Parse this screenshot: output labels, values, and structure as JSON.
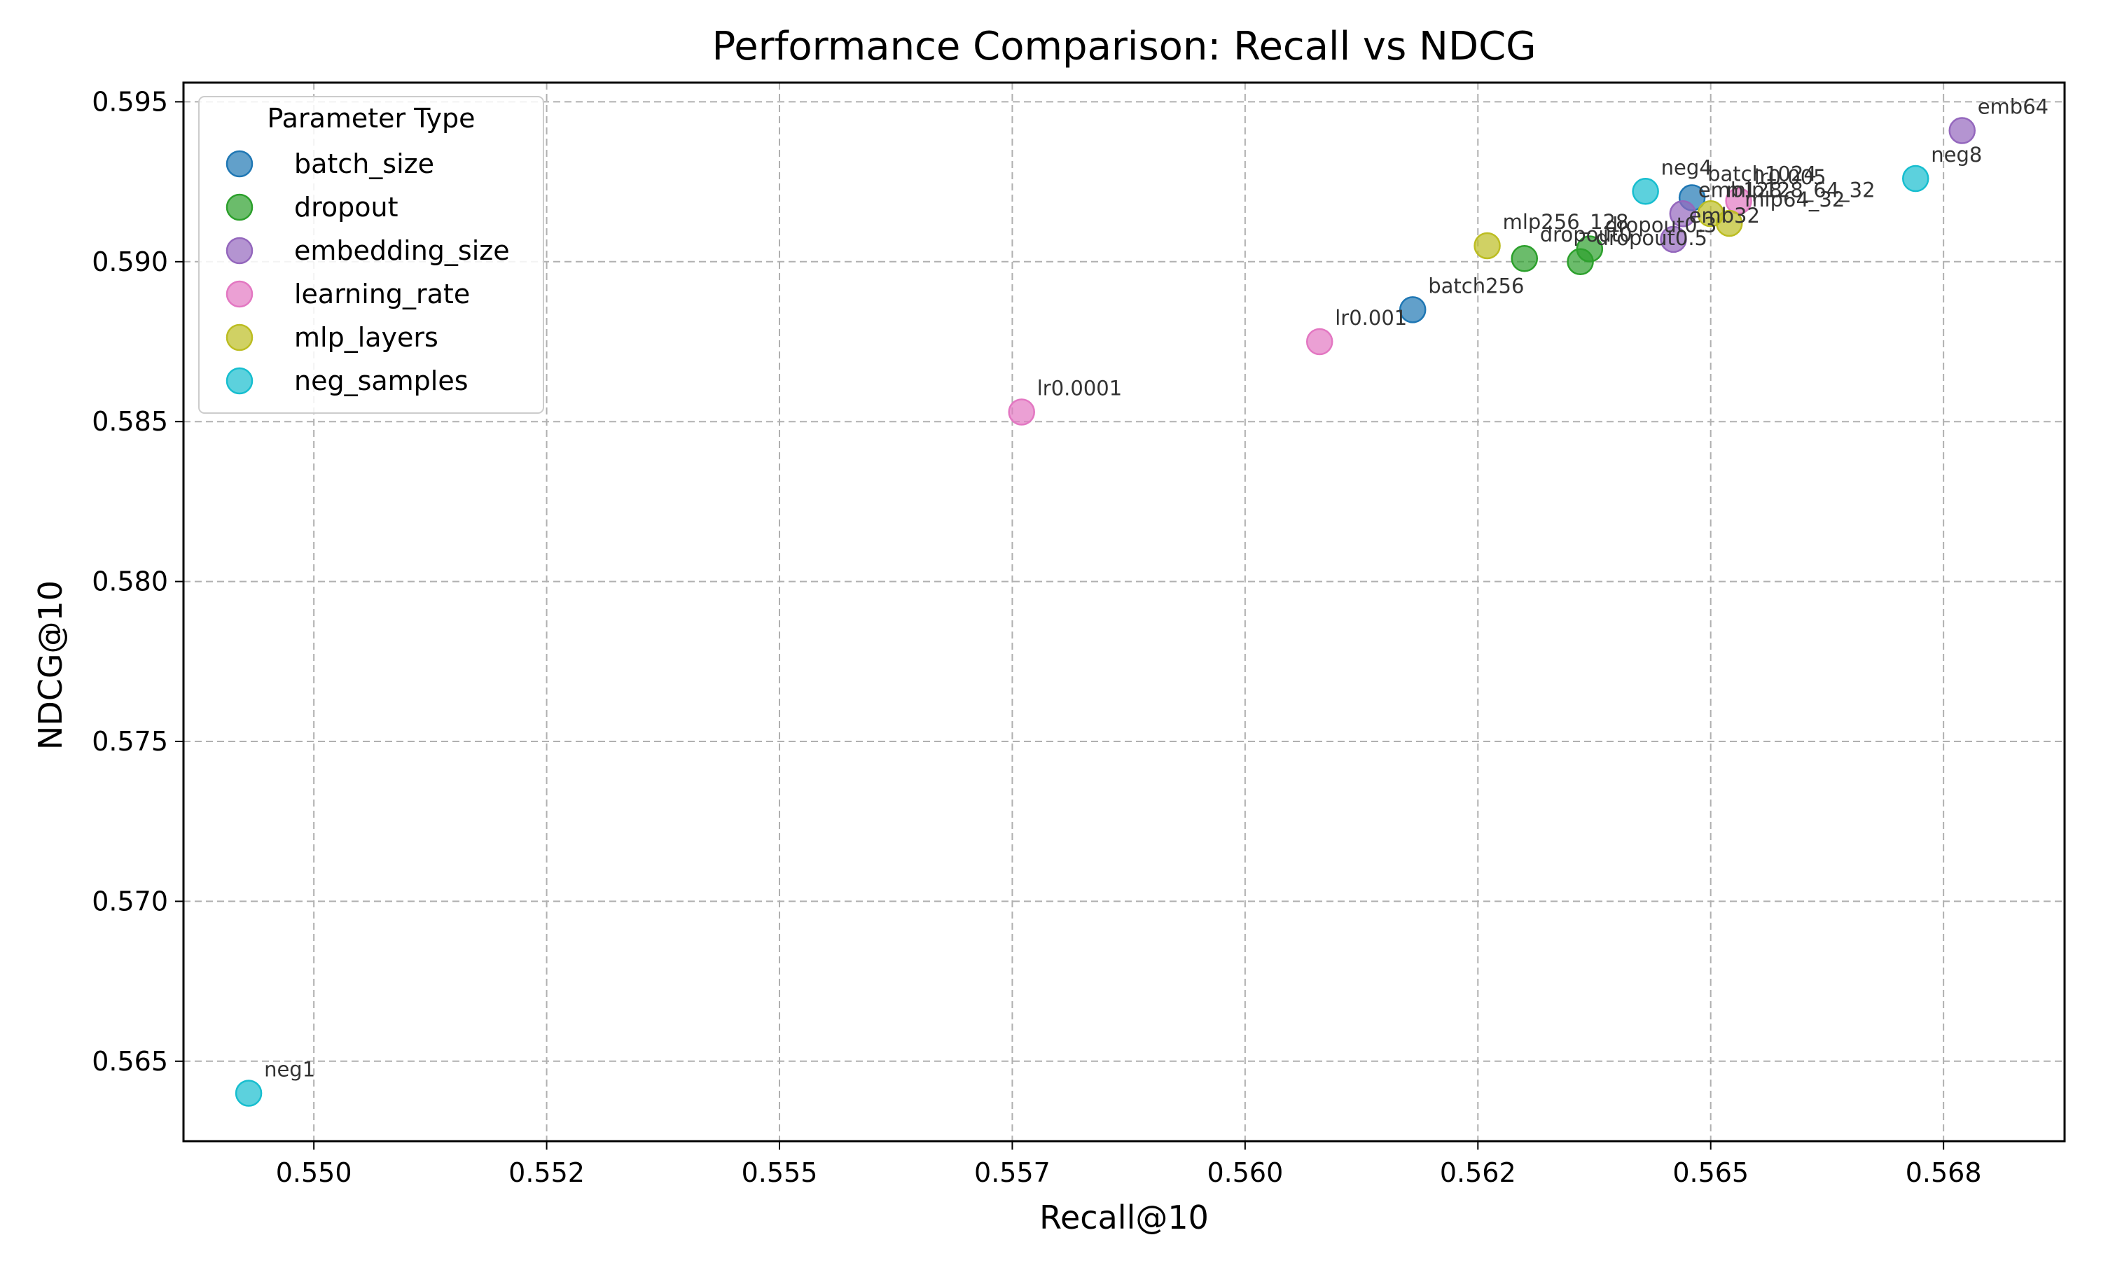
{
  "chart_data": {
    "type": "scatter",
    "title": "Performance Comparison: Recall vs NDCG",
    "xlabel": "Recall@10",
    "ylabel": "NDCG@10",
    "xlim": [
      0.5486,
      0.5688
    ],
    "ylim": [
      0.5625,
      0.5956
    ],
    "x_ticks": [
      "0.550",
      "0.552",
      "0.555",
      "0.557",
      "0.560",
      "0.562",
      "0.565",
      "0.568"
    ],
    "x_tick_values": [
      0.55,
      0.5525,
      0.555,
      0.5575,
      0.56,
      0.5625,
      0.565,
      0.5675
    ],
    "y_ticks": [
      "0.565",
      "0.570",
      "0.575",
      "0.580",
      "0.585",
      "0.590",
      "0.595"
    ],
    "y_tick_values": [
      0.565,
      0.57,
      0.575,
      0.58,
      0.585,
      0.59,
      0.595
    ],
    "grid": true,
    "legend": {
      "title": "Parameter Type",
      "placement": "top-left"
    },
    "series": [
      {
        "name": "batch_size",
        "color": "#1f77b4",
        "points": [
          {
            "label": "batch256",
            "x": 0.5618,
            "y": 0.5885
          },
          {
            "label": "batch1024",
            "x": 0.5648,
            "y": 0.592
          }
        ]
      },
      {
        "name": "dropout",
        "color": "#2ca02c",
        "points": [
          {
            "label": "dropout0",
            "x": 0.563,
            "y": 0.5901
          },
          {
            "label": "dropout0.5",
            "x": 0.5636,
            "y": 0.59
          },
          {
            "label": "dropout0.3",
            "x": 0.5637,
            "y": 0.5904
          }
        ]
      },
      {
        "name": "embedding_size",
        "color": "#9467bd",
        "points": [
          {
            "label": "emb64",
            "x": 0.5677,
            "y": 0.5941
          },
          {
            "label": "emb128",
            "x": 0.5647,
            "y": 0.5915
          },
          {
            "label": "emb32",
            "x": 0.5646,
            "y": 0.5907
          }
        ]
      },
      {
        "name": "learning_rate",
        "color": "#e377c2",
        "points": [
          {
            "label": "lr0.0001",
            "x": 0.5576,
            "y": 0.5853
          },
          {
            "label": "lr0.001",
            "x": 0.5608,
            "y": 0.5875
          },
          {
            "label": "lr0.005",
            "x": 0.5653,
            "y": 0.5919
          }
        ]
      },
      {
        "name": "mlp_layers",
        "color": "#bcbd22",
        "points": [
          {
            "label": "mlp256_128",
            "x": 0.5626,
            "y": 0.5905
          },
          {
            "label": "mlp128_64_32",
            "x": 0.565,
            "y": 0.5915
          },
          {
            "label": "mlp64_32",
            "x": 0.5652,
            "y": 0.5912
          }
        ]
      },
      {
        "name": "neg_samples",
        "color": "#17becf",
        "points": [
          {
            "label": "neg1",
            "x": 0.5493,
            "y": 0.564
          },
          {
            "label": "neg4",
            "x": 0.5643,
            "y": 0.5922
          },
          {
            "label": "neg8",
            "x": 0.5672,
            "y": 0.5926
          }
        ]
      }
    ]
  }
}
